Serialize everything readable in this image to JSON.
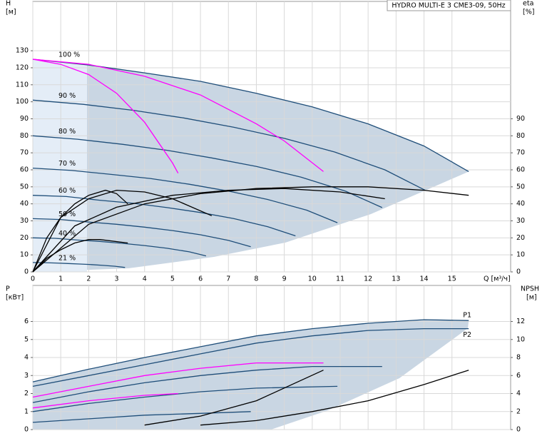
{
  "chart_data": [
    {
      "type": "line",
      "title": "HYDRO MULTI-E 3 CME3-09, 50Hz",
      "ylabel": [
        "H",
        "[м]"
      ],
      "y2label": [
        "eta",
        "[%]"
      ],
      "xlabel": "Q [м³/ч]",
      "xlim": [
        0,
        17.1
      ],
      "xticks": [
        0,
        1,
        2,
        3,
        4,
        5,
        6,
        7,
        8,
        9,
        10,
        11,
        12,
        13,
        14,
        15
      ],
      "ylim": [
        0,
        159
      ],
      "yticks": [
        0,
        10,
        20,
        30,
        40,
        50,
        60,
        70,
        80,
        90,
        100,
        110,
        120,
        130
      ],
      "y2lim": [
        0,
        159
      ],
      "y2ticks": [
        0,
        10,
        20,
        30,
        40,
        50,
        60,
        70,
        80,
        90
      ],
      "grid": true,
      "series": [
        {
          "label": "100 %",
          "color": "#1f4e79",
          "x": [
            0,
            2,
            4,
            6,
            8,
            10,
            12,
            14,
            15.6
          ],
          "values": [
            125,
            121.6,
            117,
            112,
            105,
            97,
            87,
            74,
            59
          ]
        },
        {
          "label": "90 %",
          "color": "#1f4e79",
          "x": [
            0,
            1.8,
            3.6,
            5.4,
            7.2,
            9,
            10.8,
            12.6,
            14.04
          ],
          "values": [
            101,
            98.5,
            95,
            90.5,
            85,
            78.5,
            70.5,
            60,
            48
          ]
        },
        {
          "label": "80 %",
          "color": "#1f4e79",
          "x": [
            0,
            1.6,
            3.2,
            4.8,
            6.4,
            8,
            9.6,
            11.2,
            12.5
          ],
          "values": [
            80,
            78,
            75,
            71.5,
            67,
            62,
            55.7,
            47.4,
            37.8
          ]
        },
        {
          "label": "70 %",
          "color": "#1f4e79",
          "x": [
            0,
            1.4,
            2.8,
            4.2,
            5.6,
            7,
            8.4,
            9.8,
            10.9
          ],
          "values": [
            61,
            59.6,
            57.3,
            54.9,
            51.5,
            47.5,
            42.6,
            36.3,
            28.9
          ]
        },
        {
          "label": "60 %",
          "color": "#1f4e79",
          "x": [
            0,
            1.2,
            2.4,
            3.6,
            4.8,
            6,
            7.2,
            8.4,
            9.4
          ],
          "values": [
            45,
            44.3,
            42.1,
            40.3,
            37.8,
            34.9,
            31.3,
            26.6,
            21.2
          ]
        },
        {
          "label": "50 %",
          "color": "#1f4e79",
          "x": [
            0,
            1,
            2,
            3,
            4,
            5,
            6,
            7,
            7.8
          ],
          "values": [
            31.3,
            30.8,
            29.3,
            28,
            26.3,
            24.3,
            21.8,
            18.5,
            14.8
          ]
        },
        {
          "label": "40 %",
          "color": "#1f4e79",
          "x": [
            0,
            0.8,
            1.6,
            2.4,
            3.2,
            4,
            4.8,
            5.6,
            6.2
          ],
          "values": [
            20,
            19.7,
            18.7,
            17.9,
            16.8,
            15.5,
            13.9,
            11.8,
            9.4
          ]
        },
        {
          "label": "21 %",
          "color": "#1f4e79",
          "x": [
            0,
            0.42,
            0.84,
            1.26,
            1.68,
            2.1,
            2.52,
            2.94,
            3.3
          ],
          "values": [
            5.5,
            5.4,
            5.2,
            4.9,
            4.6,
            4.3,
            3.8,
            3.3,
            2.6
          ]
        },
        {
          "color": "#ff00ff",
          "x": [
            0,
            1,
            2,
            3,
            4,
            5,
            5.2
          ],
          "values": [
            125,
            122,
            116,
            105,
            88,
            64,
            58
          ]
        },
        {
          "color": "#ff00ff",
          "x": [
            0,
            2,
            4,
            6,
            8,
            9,
            10.4
          ],
          "values": [
            125,
            122,
            115,
            104,
            87,
            77,
            59
          ]
        },
        {
          "color": "#000000",
          "axis": "y2",
          "x": [
            0,
            2,
            4,
            6,
            8,
            10,
            12,
            14,
            15.6
          ],
          "values": [
            0,
            28,
            40,
            46,
            49,
            50,
            50,
            48,
            45
          ]
        },
        {
          "color": "#000000",
          "axis": "y2",
          "x": [
            0,
            1.5,
            3,
            5,
            7,
            9,
            11,
            12.6
          ],
          "values": [
            0,
            27,
            38,
            45,
            48,
            49,
            47,
            43
          ]
        },
        {
          "color": "#000000",
          "axis": "y2",
          "x": [
            0,
            1,
            2,
            3,
            4,
            5,
            6.4
          ],
          "values": [
            0,
            32,
            43,
            48,
            47,
            43,
            33
          ]
        },
        {
          "color": "#000000",
          "axis": "y2",
          "x": [
            0,
            0.5,
            1,
            1.5,
            2,
            2.6,
            3,
            3.4
          ],
          "values": [
            0,
            20,
            32,
            40,
            45,
            48,
            46,
            40
          ]
        },
        {
          "color": "#000000",
          "axis": "y2",
          "x": [
            0,
            0.5,
            1,
            1.5,
            2,
            2.4,
            3.4
          ],
          "values": [
            0,
            8,
            13,
            17,
            19,
            19,
            17
          ]
        }
      ]
    },
    {
      "type": "line",
      "ylabel": [
        "P",
        "[кВт]"
      ],
      "y2label": [
        "NPSH",
        "[м]"
      ],
      "xlim": [
        0,
        17.1
      ],
      "ylim": [
        0,
        8
      ],
      "yticks": [
        0,
        1,
        2,
        3,
        4,
        5,
        6
      ],
      "y2lim": [
        0,
        16
      ],
      "y2ticks": [
        0,
        2,
        4,
        6,
        8,
        10,
        12
      ],
      "grid": true,
      "series": [
        {
          "label": "P1",
          "color": "#1f4e79",
          "x": [
            0,
            2,
            4,
            6,
            8,
            10,
            12,
            14,
            15.6
          ],
          "values": [
            2.65,
            3.35,
            4,
            4.6,
            5.2,
            5.6,
            5.9,
            6.1,
            6.05
          ]
        },
        {
          "label": "P2",
          "color": "#1f4e79",
          "x": [
            0,
            2,
            4,
            6,
            8,
            10,
            12,
            14,
            15.6
          ],
          "values": [
            2.4,
            3.0,
            3.6,
            4.2,
            4.8,
            5.2,
            5.5,
            5.6,
            5.6
          ]
        },
        {
          "color": "#1f4e79",
          "x": [
            0,
            2,
            4,
            6,
            8,
            10,
            12.5
          ],
          "values": [
            1.5,
            2.1,
            2.6,
            3.0,
            3.3,
            3.5,
            3.5
          ]
        },
        {
          "color": "#1f4e79",
          "x": [
            0,
            2,
            4,
            6,
            8,
            10.9
          ],
          "values": [
            1.0,
            1.45,
            1.8,
            2.1,
            2.3,
            2.4
          ]
        },
        {
          "color": "#1f4e79",
          "x": [
            0,
            2,
            4,
            6,
            7.8
          ],
          "values": [
            0.4,
            0.6,
            0.8,
            0.9,
            1.0
          ]
        },
        {
          "color": "#ff00ff",
          "x": [
            0,
            2,
            4,
            5.2
          ],
          "values": [
            1.2,
            1.6,
            1.9,
            2.0
          ]
        },
        {
          "color": "#ff00ff",
          "x": [
            0,
            2,
            4,
            6,
            8,
            10.4
          ],
          "values": [
            1.8,
            2.4,
            3.0,
            3.4,
            3.7,
            3.7
          ]
        },
        {
          "color": "#000000",
          "axis": "y2",
          "x": [
            6,
            8,
            10,
            12,
            14,
            15.6
          ],
          "values": [
            0.5,
            1,
            2,
            3.2,
            5,
            6.6
          ]
        },
        {
          "color": "#000000",
          "axis": "y2",
          "x": [
            4,
            6,
            8,
            10.4
          ],
          "values": [
            0.5,
            1.5,
            3.2,
            6.6
          ]
        }
      ]
    }
  ]
}
